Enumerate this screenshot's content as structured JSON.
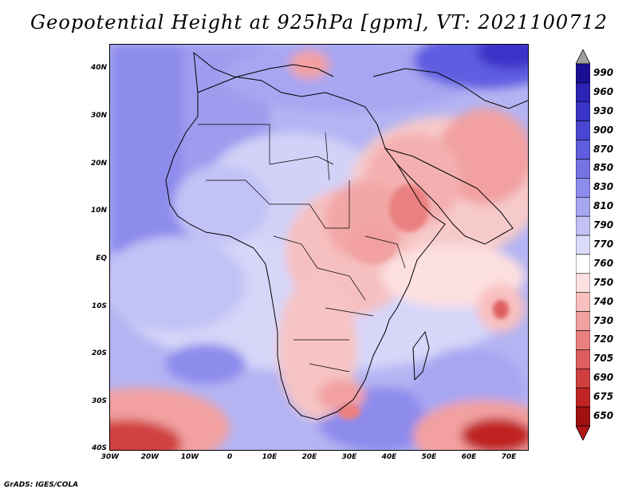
{
  "title": "Geopotential Height at 925hPa [gpm], VT: 2021100712",
  "credit": "GrADS: IGES/COLA",
  "map": {
    "lon_range": [
      -30,
      75
    ],
    "lat_range": [
      -40,
      45
    ],
    "lat_labels": [
      "40N",
      "30N",
      "20N",
      "10N",
      "EQ",
      "10S",
      "20S",
      "30S",
      "40S"
    ],
    "lon_labels": [
      "30W",
      "20W",
      "10W",
      "0",
      "10E",
      "20E",
      "30E",
      "40E",
      "50E",
      "60E",
      "70E"
    ]
  },
  "legend": {
    "levels": [
      "990",
      "960",
      "930",
      "900",
      "870",
      "850",
      "830",
      "810",
      "790",
      "770",
      "760",
      "750",
      "740",
      "730",
      "720",
      "705",
      "690",
      "675",
      "650"
    ],
    "colors": [
      "#1a0f94",
      "#2a23b4",
      "#3a33c8",
      "#4a46d4",
      "#5f5de0",
      "#7572e6",
      "#8d8bec",
      "#a7a6f1",
      "#c2c2f6",
      "#dcdcfa",
      "#ffffff",
      "#fde0e0",
      "#f9c0c0",
      "#f2a0a0",
      "#ea8080",
      "#de5e5e",
      "#d04040",
      "#c02424",
      "#a01010"
    ],
    "top_arrow_color": "#a0a0a0",
    "bottom_arrow_color": "#b01818"
  }
}
